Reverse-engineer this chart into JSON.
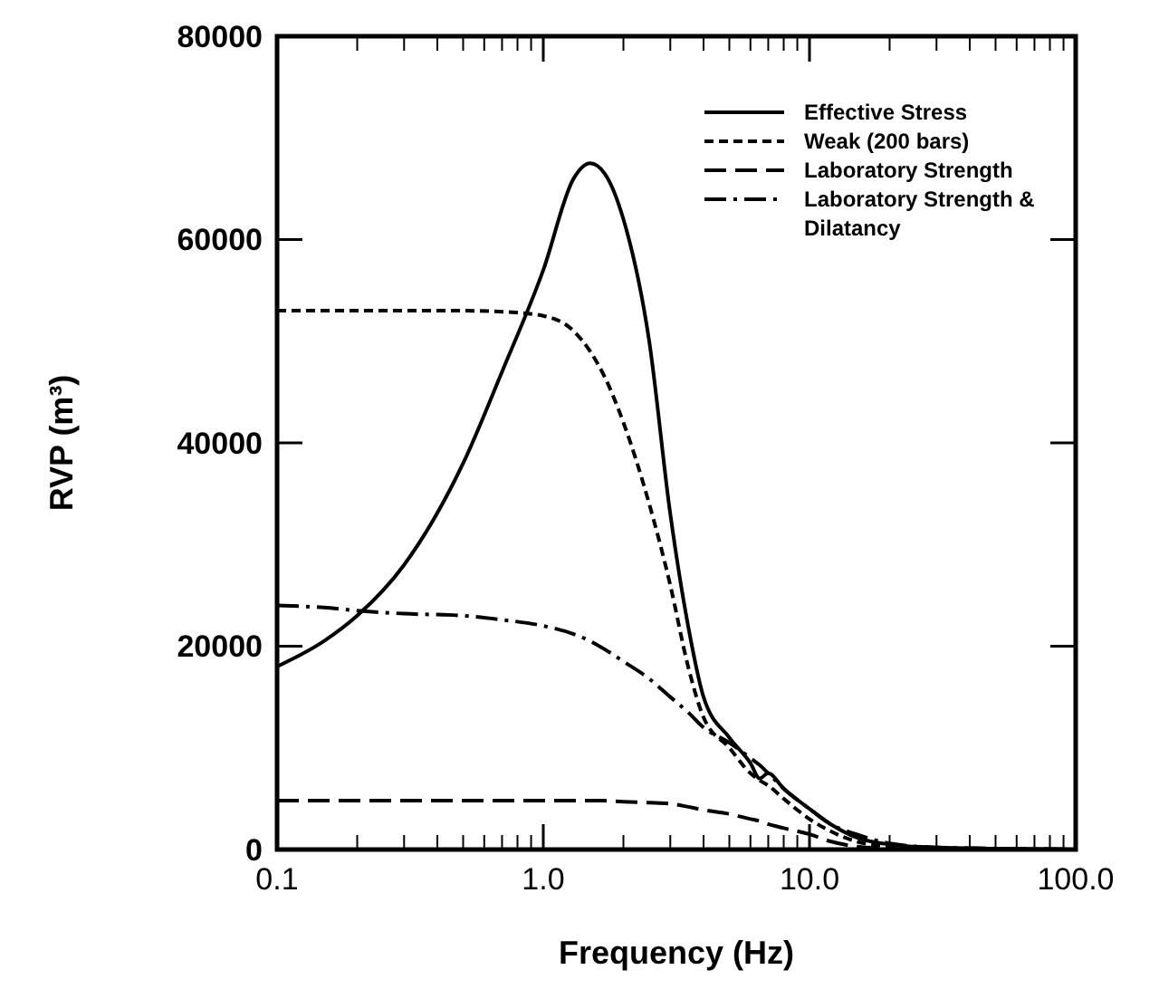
{
  "chart_data": {
    "type": "line",
    "xlabel": "Frequency (Hz)",
    "ylabel": "RVP (m³)",
    "log": "x",
    "x": [
      0.1,
      0.15,
      0.2,
      0.3,
      0.5,
      0.7,
      1,
      1.3,
      1.5,
      1.7,
      2,
      2.5,
      3,
      3.5,
      4,
      5,
      6,
      6.5,
      7,
      8,
      10,
      12,
      15,
      20,
      30,
      50,
      100
    ],
    "xlim": [
      0.1,
      100
    ],
    "xticks": [
      {
        "value": 0.1,
        "label": "0.1"
      },
      {
        "value": 1,
        "label": "1.0"
      },
      {
        "value": 10,
        "label": "10.0"
      },
      {
        "value": 100,
        "label": "100.0"
      }
    ],
    "ylim": [
      0,
      80000
    ],
    "yticks": [
      0,
      20000,
      40000,
      60000,
      80000
    ],
    "grid": false,
    "legend": "top right",
    "series": [
      {
        "name": "Effective Stress",
        "color": "#000000",
        "line_style": "solid",
        "values": [
          18000,
          20500,
          23000,
          28000,
          38000,
          47000,
          57000,
          66000,
          67500,
          66500,
          62000,
          50000,
          33000,
          22000,
          15000,
          11000,
          8500,
          7000,
          7500,
          6000,
          4000,
          2500,
          1200,
          500,
          200,
          100,
          0
        ]
      },
      {
        "name": "Weak (200 bars)",
        "color": "#000000",
        "line_style": "dotted",
        "values": [
          53000,
          53000,
          53000,
          53000,
          53000,
          52900,
          52500,
          51000,
          49000,
          46500,
          42000,
          34000,
          26000,
          18000,
          13000,
          10000,
          7500,
          6800,
          6300,
          5000,
          3000,
          1800,
          800,
          300,
          100,
          0,
          0
        ]
      },
      {
        "name": "Laboratory Strength",
        "color": "#000000",
        "line_style": "dashed",
        "values": [
          4800,
          4800,
          4800,
          4800,
          4800,
          4800,
          4800,
          4800,
          4800,
          4800,
          4700,
          4600,
          4500,
          4200,
          3900,
          3500,
          3000,
          2800,
          2500,
          2100,
          1500,
          800,
          300,
          100,
          0,
          0,
          0
        ]
      },
      {
        "name": "Laboratory Strength & Dilatancy",
        "color": "#000000",
        "line_style": "dashdot",
        "values": [
          24000,
          23800,
          23500,
          23200,
          23000,
          22600,
          22000,
          21200,
          20500,
          19700,
          18500,
          16800,
          15000,
          13500,
          12000,
          10500,
          9000,
          8300,
          7500,
          6000,
          4000,
          2500,
          1500,
          600,
          200,
          100,
          0
        ]
      }
    ]
  }
}
